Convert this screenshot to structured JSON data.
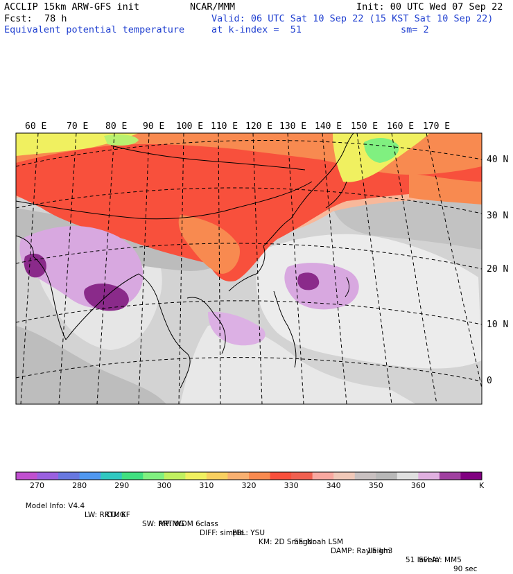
{
  "header": {
    "model": "ACCLIP 15km ARW-GFS init",
    "center": "NCAR/MMM",
    "init": "Init: 00 UTC Wed 07 Sep 22",
    "fcst_label": "Fcst:",
    "fcst_value": "78 h",
    "valid": "Valid: 06 UTC Sat 10 Sep 22 (15 KST Sat 10 Sep 22)",
    "field": "Equivalent potential temperature",
    "level": "at k-index =  51",
    "smooth": "sm= 2"
  },
  "map": {
    "lon_labels": [
      "60 E",
      "70 E",
      "80 E",
      "90 E",
      "100 E",
      "110 E",
      "120 E",
      "130 E",
      "140 E",
      "150 E",
      "160 E",
      "170 E"
    ],
    "lat_labels": [
      "40 N",
      "30 N",
      "20 N",
      "10 N",
      "0"
    ],
    "colors": {
      "cold_purple": "#d8a8e0",
      "dark_purple": "#8a2a8a",
      "light_gray": "#d3d3d3",
      "mid_gray": "#bdbdbd",
      "white": "#f0f0f0",
      "red": "#f8503c",
      "orange": "#f88a50",
      "peach": "#f8b89a",
      "yellow": "#f0f060",
      "green": "#80f080"
    }
  },
  "colorbar": {
    "colors": [
      "#c050d0",
      "#9a60e0",
      "#6878e0",
      "#5098f0",
      "#30c8c0",
      "#40e080",
      "#80f080",
      "#c0f060",
      "#f0f060",
      "#f8d060",
      "#f8b070",
      "#f88a50",
      "#f8503c",
      "#f06050",
      "#f8a8a0",
      "#f0c8b8",
      "#c8c0c0",
      "#b8b8b8",
      "#e0e0e0",
      "#e0b0e0",
      "#a040a0",
      "#800080"
    ],
    "labels": [
      "270",
      "280",
      "290",
      "300",
      "310",
      "320",
      "330",
      "340",
      "350",
      "360"
    ],
    "unit": "K"
  },
  "footer": {
    "line1": [
      "Model Info: V4.4",
      "CU: KF",
      "MP: WDM 6class",
      "PBL: YSU",
      "SF: Noah LSM",
      "15 km",
      "51 levels",
      "90 sec"
    ],
    "line2": [
      "LW: RRTMG",
      "SW: RRTMG",
      "DIFF: simple",
      "KM: 2D Smagor",
      "DAMP: Rayleigh3",
      "SFLAY: MM5"
    ]
  }
}
